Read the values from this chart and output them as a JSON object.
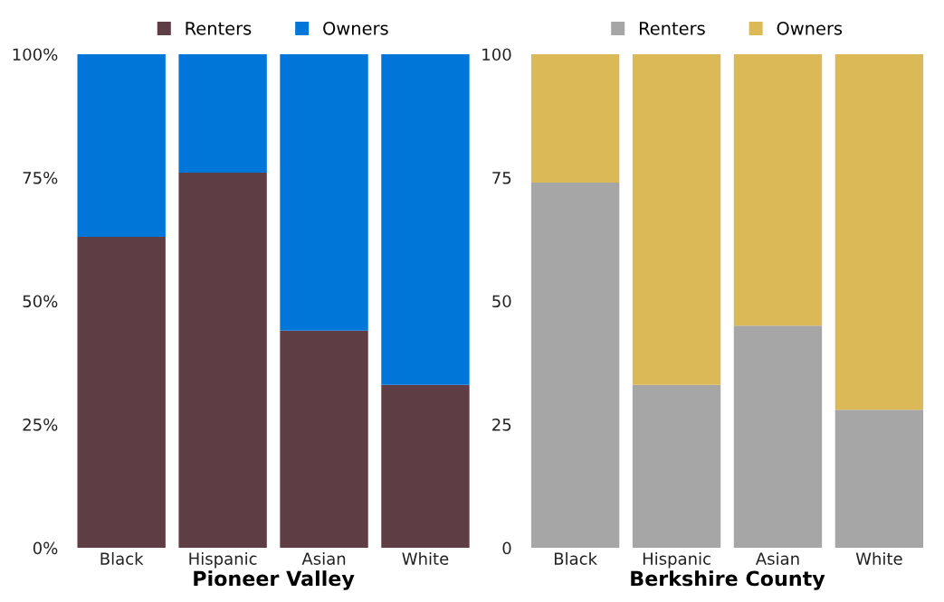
{
  "chart_data": [
    {
      "type": "bar",
      "stacked": true,
      "xlabel": "Pioneer Valley",
      "categories": [
        "Black",
        "Hispanic",
        "Asian",
        "White"
      ],
      "series": [
        {
          "name": "Renters",
          "color": "#5e3d44",
          "values": [
            63,
            76,
            44,
            33
          ]
        },
        {
          "name": "Owners",
          "color": "#0076d9",
          "values": [
            37,
            24,
            56,
            67
          ]
        }
      ],
      "ylim": [
        0,
        100
      ],
      "yticks": [
        {
          "value": 0,
          "label": "0%"
        },
        {
          "value": 25,
          "label": "25%"
        },
        {
          "value": 50,
          "label": "50%"
        },
        {
          "value": 75,
          "label": "75%"
        },
        {
          "value": 100,
          "label": "100%"
        }
      ],
      "legend": "top",
      "grid": false
    },
    {
      "type": "bar",
      "stacked": true,
      "xlabel": "Berkshire County",
      "categories": [
        "Black",
        "Hispanic",
        "Asian",
        "White"
      ],
      "series": [
        {
          "name": "Renters",
          "color": "#a6a6a6",
          "values": [
            74,
            33,
            45,
            28
          ]
        },
        {
          "name": "Owners",
          "color": "#dbb957",
          "values": [
            26,
            67,
            55,
            72
          ]
        }
      ],
      "ylim": [
        0,
        100
      ],
      "yticks": [
        0,
        25,
        50,
        75,
        100
      ],
      "legend": "top",
      "grid": false
    }
  ]
}
